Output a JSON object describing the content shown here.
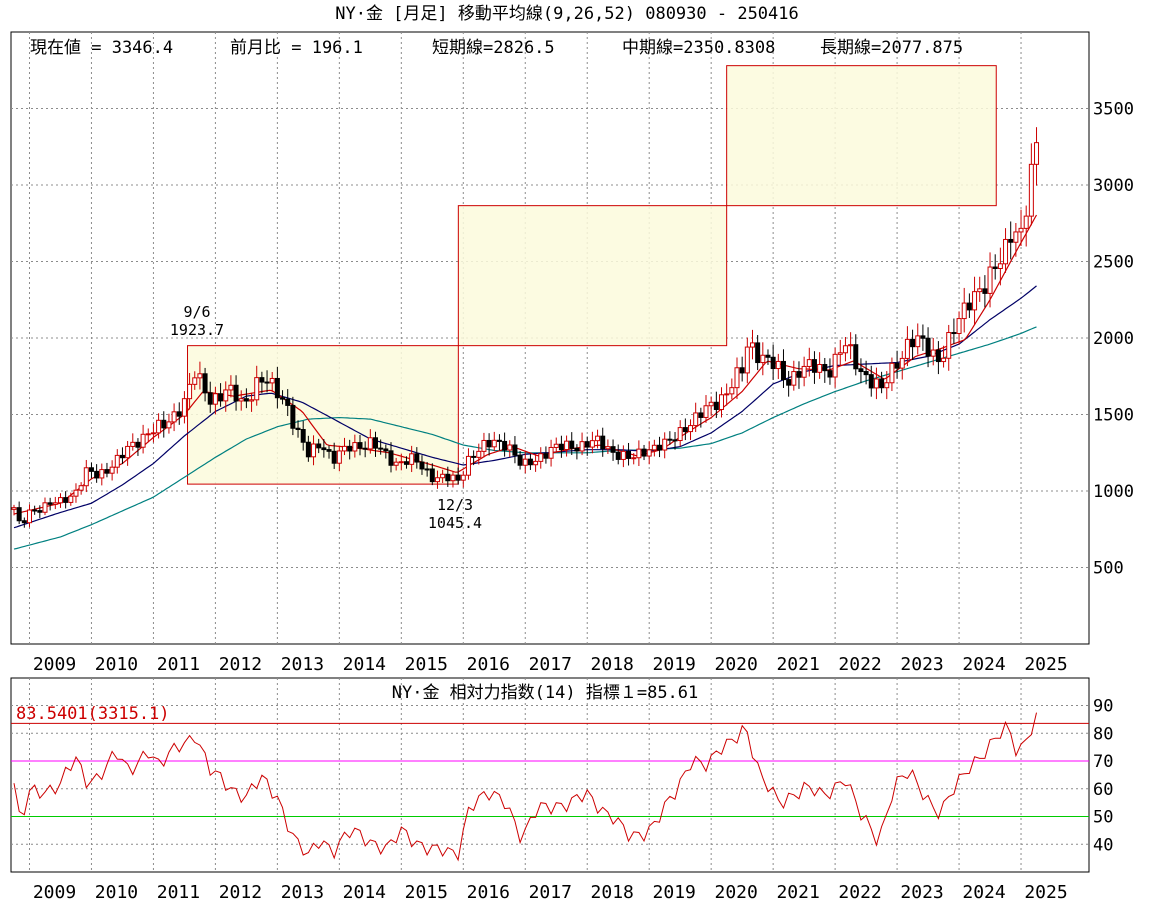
{
  "main_chart": {
    "title": "NY·金 [月足] 移動平均線(9,26,52) 080930 - 250416",
    "info": {
      "current": "現在値 = 3346.4",
      "change": "前月比 = 196.1",
      "short": "短期線=2826.5",
      "mid": "中期線=2350.8308",
      "long": "長期線=2077.875"
    },
    "annotations": [
      {
        "line1": "9/6",
        "line2": "1923.7"
      },
      {
        "line1": "12/3",
        "line2": "1045.4"
      }
    ]
  },
  "sub_chart": {
    "title": "NY·金 相対力指数(14) 指標１=85.61",
    "label": "83.5401(3315.1)"
  },
  "chart_data": [
    {
      "type": "candlestick",
      "title": "NY·金 [月足] 移動平均線(9,26,52) 080930 - 250416",
      "x_range": [
        2008.75,
        2025.29
      ],
      "ylim": [
        0,
        4000
      ],
      "yticks": [
        500,
        1000,
        1500,
        2000,
        2500,
        3000,
        3500
      ],
      "xticks": [
        "2009",
        "2010",
        "2011",
        "2012",
        "2013",
        "2014",
        "2015",
        "2016",
        "2017",
        "2018",
        "2019",
        "2020",
        "2021",
        "2022",
        "2023",
        "2024",
        "2025"
      ],
      "grid": true,
      "price_keyframes": [
        [
          2008.75,
          880
        ],
        [
          2008.85,
          760
        ],
        [
          2009.0,
          870
        ],
        [
          2009.25,
          900
        ],
        [
          2009.5,
          930
        ],
        [
          2009.75,
          1000
        ],
        [
          2009.92,
          1120
        ],
        [
          2010.1,
          1100
        ],
        [
          2010.5,
          1230
        ],
        [
          2010.9,
          1390
        ],
        [
          2011.2,
          1420
        ],
        [
          2011.5,
          1600
        ],
        [
          2011.67,
          1760
        ],
        [
          2011.9,
          1600
        ],
        [
          2012.2,
          1660
        ],
        [
          2012.45,
          1560
        ],
        [
          2012.7,
          1740
        ],
        [
          2012.9,
          1680
        ],
        [
          2013.15,
          1580
        ],
        [
          2013.3,
          1400
        ],
        [
          2013.5,
          1230
        ],
        [
          2013.7,
          1330
        ],
        [
          2013.9,
          1200
        ],
        [
          2014.2,
          1300
        ],
        [
          2014.5,
          1310
        ],
        [
          2014.9,
          1190
        ],
        [
          2015.2,
          1200
        ],
        [
          2015.5,
          1100
        ],
        [
          2015.92,
          1065
        ],
        [
          2016.1,
          1230
        ],
        [
          2016.5,
          1320
        ],
        [
          2016.7,
          1320
        ],
        [
          2016.95,
          1150
        ],
        [
          2017.3,
          1250
        ],
        [
          2017.7,
          1300
        ],
        [
          2017.95,
          1300
        ],
        [
          2018.2,
          1320
        ],
        [
          2018.55,
          1230
        ],
        [
          2018.7,
          1200
        ],
        [
          2018.95,
          1280
        ],
        [
          2019.3,
          1300
        ],
        [
          2019.55,
          1420
        ],
        [
          2019.8,
          1480
        ],
        [
          2020.0,
          1560
        ],
        [
          2020.25,
          1650
        ],
        [
          2020.5,
          1780
        ],
        [
          2020.6,
          1980
        ],
        [
          2020.85,
          1870
        ],
        [
          2021.1,
          1780
        ],
        [
          2021.2,
          1720
        ],
        [
          2021.45,
          1800
        ],
        [
          2021.9,
          1800
        ],
        [
          2022.15,
          1950
        ],
        [
          2022.4,
          1800
        ],
        [
          2022.6,
          1720
        ],
        [
          2022.75,
          1650
        ],
        [
          2022.95,
          1820
        ],
        [
          2023.2,
          1980
        ],
        [
          2023.4,
          1960
        ],
        [
          2023.7,
          1870
        ],
        [
          2023.95,
          2060
        ],
        [
          2024.2,
          2300
        ],
        [
          2024.45,
          2330
        ],
        [
          2024.7,
          2550
        ],
        [
          2024.85,
          2740
        ],
        [
          2025.0,
          2650
        ],
        [
          2025.1,
          2860
        ],
        [
          2025.2,
          3150
        ],
        [
          2025.28,
          3346
        ]
      ],
      "ma_short": [
        [
          2008.75,
          850
        ],
        [
          2009.5,
          920
        ],
        [
          2010.0,
          1080
        ],
        [
          2010.5,
          1180
        ],
        [
          2011.0,
          1350
        ],
        [
          2011.5,
          1500
        ],
        [
          2011.8,
          1650
        ],
        [
          2012.3,
          1620
        ],
        [
          2012.9,
          1660
        ],
        [
          2013.4,
          1520
        ],
        [
          2013.8,
          1300
        ],
        [
          2014.3,
          1280
        ],
        [
          2014.8,
          1250
        ],
        [
          2015.5,
          1170
        ],
        [
          2015.9,
          1120
        ],
        [
          2016.4,
          1240
        ],
        [
          2016.8,
          1290
        ],
        [
          2017.2,
          1230
        ],
        [
          2017.8,
          1280
        ],
        [
          2018.2,
          1300
        ],
        [
          2018.8,
          1230
        ],
        [
          2019.2,
          1270
        ],
        [
          2019.6,
          1380
        ],
        [
          2020.0,
          1480
        ],
        [
          2020.5,
          1650
        ],
        [
          2020.9,
          1850
        ],
        [
          2021.4,
          1800
        ],
        [
          2021.9,
          1790
        ],
        [
          2022.3,
          1850
        ],
        [
          2022.8,
          1730
        ],
        [
          2023.3,
          1880
        ],
        [
          2023.7,
          1930
        ],
        [
          2024.1,
          1990
        ],
        [
          2024.5,
          2250
        ],
        [
          2024.9,
          2550
        ],
        [
          2025.28,
          2826
        ]
      ],
      "ma_mid": [
        [
          2008.75,
          760
        ],
        [
          2009.5,
          860
        ],
        [
          2010.0,
          920
        ],
        [
          2010.5,
          1040
        ],
        [
          2011.0,
          1180
        ],
        [
          2011.5,
          1360
        ],
        [
          2012.0,
          1520
        ],
        [
          2012.5,
          1620
        ],
        [
          2012.9,
          1640
        ],
        [
          2013.4,
          1580
        ],
        [
          2014.0,
          1450
        ],
        [
          2014.5,
          1340
        ],
        [
          2015.0,
          1280
        ],
        [
          2015.5,
          1220
        ],
        [
          2016.0,
          1170
        ],
        [
          2016.5,
          1200
        ],
        [
          2017.0,
          1240
        ],
        [
          2017.5,
          1255
        ],
        [
          2018.0,
          1270
        ],
        [
          2018.5,
          1270
        ],
        [
          2019.0,
          1260
        ],
        [
          2019.5,
          1290
        ],
        [
          2020.0,
          1380
        ],
        [
          2020.5,
          1520
        ],
        [
          2021.0,
          1700
        ],
        [
          2021.5,
          1780
        ],
        [
          2022.0,
          1820
        ],
        [
          2022.5,
          1830
        ],
        [
          2023.0,
          1840
        ],
        [
          2023.5,
          1880
        ],
        [
          2024.0,
          1960
        ],
        [
          2024.5,
          2120
        ],
        [
          2025.0,
          2260
        ],
        [
          2025.28,
          2350
        ]
      ],
      "ma_long": [
        [
          2008.75,
          620
        ],
        [
          2009.5,
          700
        ],
        [
          2010.0,
          780
        ],
        [
          2010.5,
          870
        ],
        [
          2011.0,
          960
        ],
        [
          2011.5,
          1090
        ],
        [
          2012.0,
          1220
        ],
        [
          2012.5,
          1340
        ],
        [
          2013.0,
          1420
        ],
        [
          2013.5,
          1470
        ],
        [
          2014.0,
          1480
        ],
        [
          2014.5,
          1470
        ],
        [
          2015.0,
          1420
        ],
        [
          2015.5,
          1370
        ],
        [
          2016.0,
          1300
        ],
        [
          2016.5,
          1265
        ],
        [
          2017.0,
          1250
        ],
        [
          2017.5,
          1250
        ],
        [
          2018.0,
          1250
        ],
        [
          2018.5,
          1265
        ],
        [
          2019.0,
          1270
        ],
        [
          2019.5,
          1280
        ],
        [
          2020.0,
          1310
        ],
        [
          2020.5,
          1380
        ],
        [
          2021.0,
          1480
        ],
        [
          2021.5,
          1570
        ],
        [
          2022.0,
          1650
        ],
        [
          2022.5,
          1720
        ],
        [
          2023.0,
          1780
        ],
        [
          2023.5,
          1840
        ],
        [
          2024.0,
          1900
        ],
        [
          2024.5,
          1960
        ],
        [
          2025.0,
          2030
        ],
        [
          2025.28,
          2078
        ]
      ],
      "boxes": [
        {
          "x0": 2011.55,
          "x1": 2015.92,
          "y0": 1045,
          "y1": 1950
        },
        {
          "x0": 2015.92,
          "x1": 2020.25,
          "y0": 1950,
          "y1": 2865
        },
        {
          "x0": 2020.25,
          "x1": 2024.6,
          "y0": 2865,
          "y1": 3780
        }
      ],
      "colors": {
        "up": "#cc0000",
        "down": "#000000",
        "ma_short": "#cc0000",
        "ma_mid": "#000066",
        "ma_long": "#008080",
        "box_fill": "#fcfadc",
        "box_stroke": "#cc0000"
      }
    },
    {
      "type": "line",
      "title": "NY·金 相対力指数(14) 指標１=85.61",
      "ylim": [
        30,
        95
      ],
      "yticks": [
        40,
        50,
        60,
        70,
        80,
        90
      ],
      "reference_lines": [
        {
          "value": 83.54,
          "color": "#cc0000"
        },
        {
          "value": 70,
          "color": "#ff00ff"
        },
        {
          "value": 50,
          "color": "#00cc00"
        }
      ],
      "rsi_keyframes": [
        [
          2008.75,
          62
        ],
        [
          2008.85,
          46
        ],
        [
          2009.0,
          58
        ],
        [
          2009.25,
          60
        ],
        [
          2009.5,
          62
        ],
        [
          2009.75,
          70
        ],
        [
          2009.9,
          63
        ],
        [
          2010.1,
          65
        ],
        [
          2010.4,
          72
        ],
        [
          2010.6,
          66
        ],
        [
          2010.9,
          75
        ],
        [
          2011.1,
          67
        ],
        [
          2011.4,
          76
        ],
        [
          2011.67,
          80
        ],
        [
          2011.9,
          66
        ],
        [
          2012.2,
          62
        ],
        [
          2012.5,
          57
        ],
        [
          2012.75,
          63
        ],
        [
          2013.0,
          58
        ],
        [
          2013.3,
          40
        ],
        [
          2013.5,
          35
        ],
        [
          2013.7,
          43
        ],
        [
          2013.9,
          38
        ],
        [
          2014.2,
          44
        ],
        [
          2014.5,
          42
        ],
        [
          2014.8,
          38
        ],
        [
          2015.0,
          44
        ],
        [
          2015.3,
          41
        ],
        [
          2015.6,
          37
        ],
        [
          2015.9,
          36
        ],
        [
          2016.1,
          55
        ],
        [
          2016.4,
          57
        ],
        [
          2016.7,
          56
        ],
        [
          2016.95,
          42
        ],
        [
          2017.2,
          52
        ],
        [
          2017.5,
          55
        ],
        [
          2017.75,
          55
        ],
        [
          2018.0,
          57
        ],
        [
          2018.4,
          51
        ],
        [
          2018.7,
          41
        ],
        [
          2018.95,
          45
        ],
        [
          2019.2,
          52
        ],
        [
          2019.45,
          58
        ],
        [
          2019.7,
          72
        ],
        [
          2019.95,
          69
        ],
        [
          2020.3,
          76
        ],
        [
          2020.55,
          84
        ],
        [
          2020.8,
          63
        ],
        [
          2021.1,
          55
        ],
        [
          2021.25,
          58
        ],
        [
          2021.5,
          60
        ],
        [
          2021.8,
          57
        ],
        [
          2022.15,
          65
        ],
        [
          2022.4,
          50
        ],
        [
          2022.7,
          42
        ],
        [
          2022.95,
          61
        ],
        [
          2023.2,
          65
        ],
        [
          2023.5,
          57
        ],
        [
          2023.7,
          51
        ],
        [
          2023.95,
          60
        ],
        [
          2024.2,
          70
        ],
        [
          2024.5,
          75
        ],
        [
          2024.8,
          82
        ],
        [
          2024.95,
          73
        ],
        [
          2025.1,
          80
        ],
        [
          2025.28,
          85.6
        ]
      ],
      "colors": {
        "line": "#cc0000"
      }
    }
  ]
}
